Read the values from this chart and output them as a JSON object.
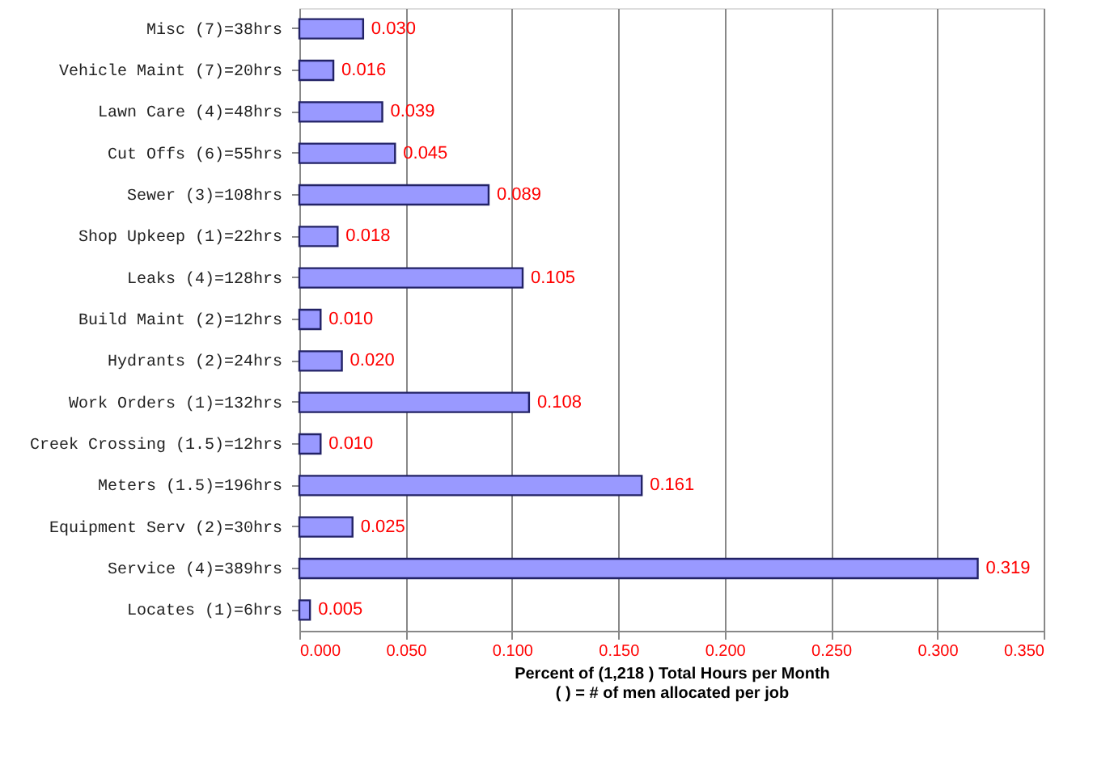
{
  "chart_data": {
    "type": "bar",
    "orientation": "horizontal",
    "xlabel": "Percent of  (1,218 ) Total Hours per Month\n(  ) = # of men allocated per job",
    "categories": [
      "Misc            (7)=38hrs",
      "Vehicle Maint   (7)=20hrs",
      "Lawn Care       (4)=48hrs",
      "Cut Offs        (6)=55hrs",
      "Sewer           (3)=108hrs",
      "Shop Upkeep     (1)=22hrs",
      "Leaks           (4)=128hrs",
      "Build Maint     (2)=12hrs",
      "Hydrants        (2)=24hrs",
      "Work Orders     (1)=132hrs",
      "Creek Crossing  (1.5)=12hrs",
      "Meters          (1.5)=196hrs",
      "Equipment Serv  (2)=30hrs",
      "Service         (4)=389hrs",
      "Locates         (1)=6hrs"
    ],
    "values": [
      0.03,
      0.016,
      0.039,
      0.045,
      0.089,
      0.018,
      0.105,
      0.01,
      0.02,
      0.108,
      0.01,
      0.161,
      0.025,
      0.319,
      0.005
    ],
    "value_labels": [
      "0.030",
      "0.016",
      "0.039",
      "0.045",
      "0.089",
      "0.018",
      "0.105",
      "0.010",
      "0.020",
      "0.108",
      "0.010",
      "0.161",
      "0.025",
      "0.319",
      "0.005"
    ],
    "color": "#9999ff",
    "xlim": [
      0,
      0.35
    ],
    "xticks": [
      {
        "value": 0,
        "label": "0.000"
      },
      {
        "value": 0.05,
        "label": "0.050"
      },
      {
        "value": 0.1,
        "label": "0.100"
      },
      {
        "value": 0.15,
        "label": "0.150"
      },
      {
        "value": 0.2,
        "label": "0.200"
      },
      {
        "value": 0.25,
        "label": "0.250"
      },
      {
        "value": 0.3,
        "label": "0.300"
      },
      {
        "value": 0.35,
        "label": "0.350"
      }
    ],
    "grid": "x"
  }
}
